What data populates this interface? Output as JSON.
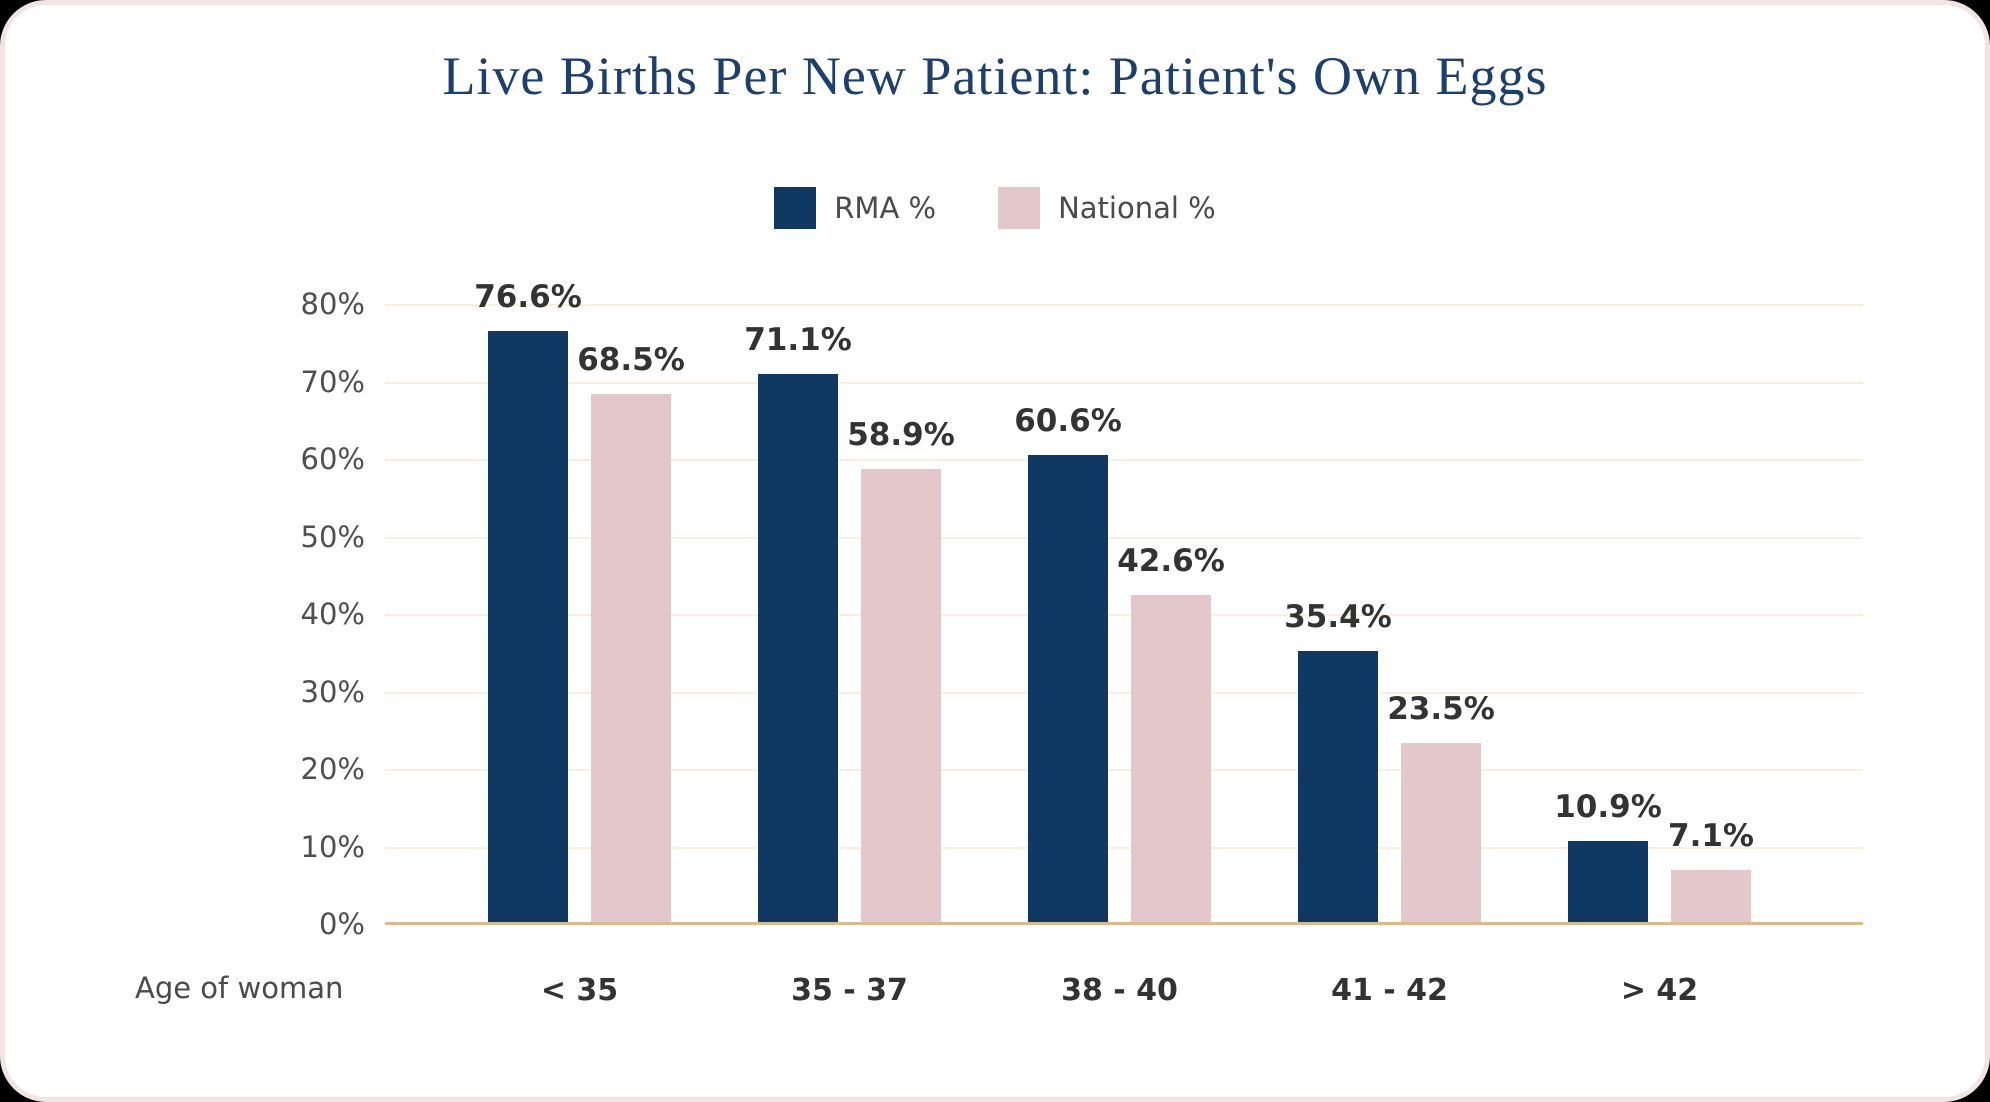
{
  "title": "Live Births Per New Patient: Patient's Own Eggs",
  "x_axis_label": "Age of woman",
  "legend": [
    {
      "label": "RMA %",
      "color": "#0f3862"
    },
    {
      "label": "National %",
      "color": "#e3c7ca"
    }
  ],
  "colors": {
    "rma_navy": "#0f3862",
    "national_pink": "#e3c7ca",
    "gridline_cream": "#f7efe2",
    "baseline_tan": "#dcba8b",
    "title_navy": "#1c3f6e",
    "card_border_pink": "#f1e5e4"
  },
  "chart_data": {
    "type": "bar",
    "title": "Live Births Per New Patient: Patient's Own Eggs",
    "categories": [
      "< 35",
      "35 - 37",
      "38 - 40",
      "41 - 42",
      "> 42"
    ],
    "series": [
      {
        "name": "RMA %",
        "color": "#0f3862",
        "values": [
          76.6,
          71.1,
          60.6,
          35.4,
          10.9
        ],
        "labels": [
          "76.6%",
          "71.1%",
          "60.6%",
          "35.4%",
          "10.9%"
        ]
      },
      {
        "name": "National %",
        "color": "#e3c7ca",
        "values": [
          68.5,
          58.9,
          42.6,
          23.5,
          7.1
        ],
        "labels": [
          "68.5%",
          "58.9%",
          "42.6%",
          "23.5%",
          "7.1%"
        ]
      }
    ],
    "xlabel": "Age of woman",
    "ylabel": "",
    "ylim": [
      0,
      80
    ],
    "yticks": [
      "0%",
      "10%",
      "20%",
      "30%",
      "40%",
      "50%",
      "60%",
      "70%",
      "80%"
    ],
    "grid": true,
    "legend_position": "top-center"
  }
}
